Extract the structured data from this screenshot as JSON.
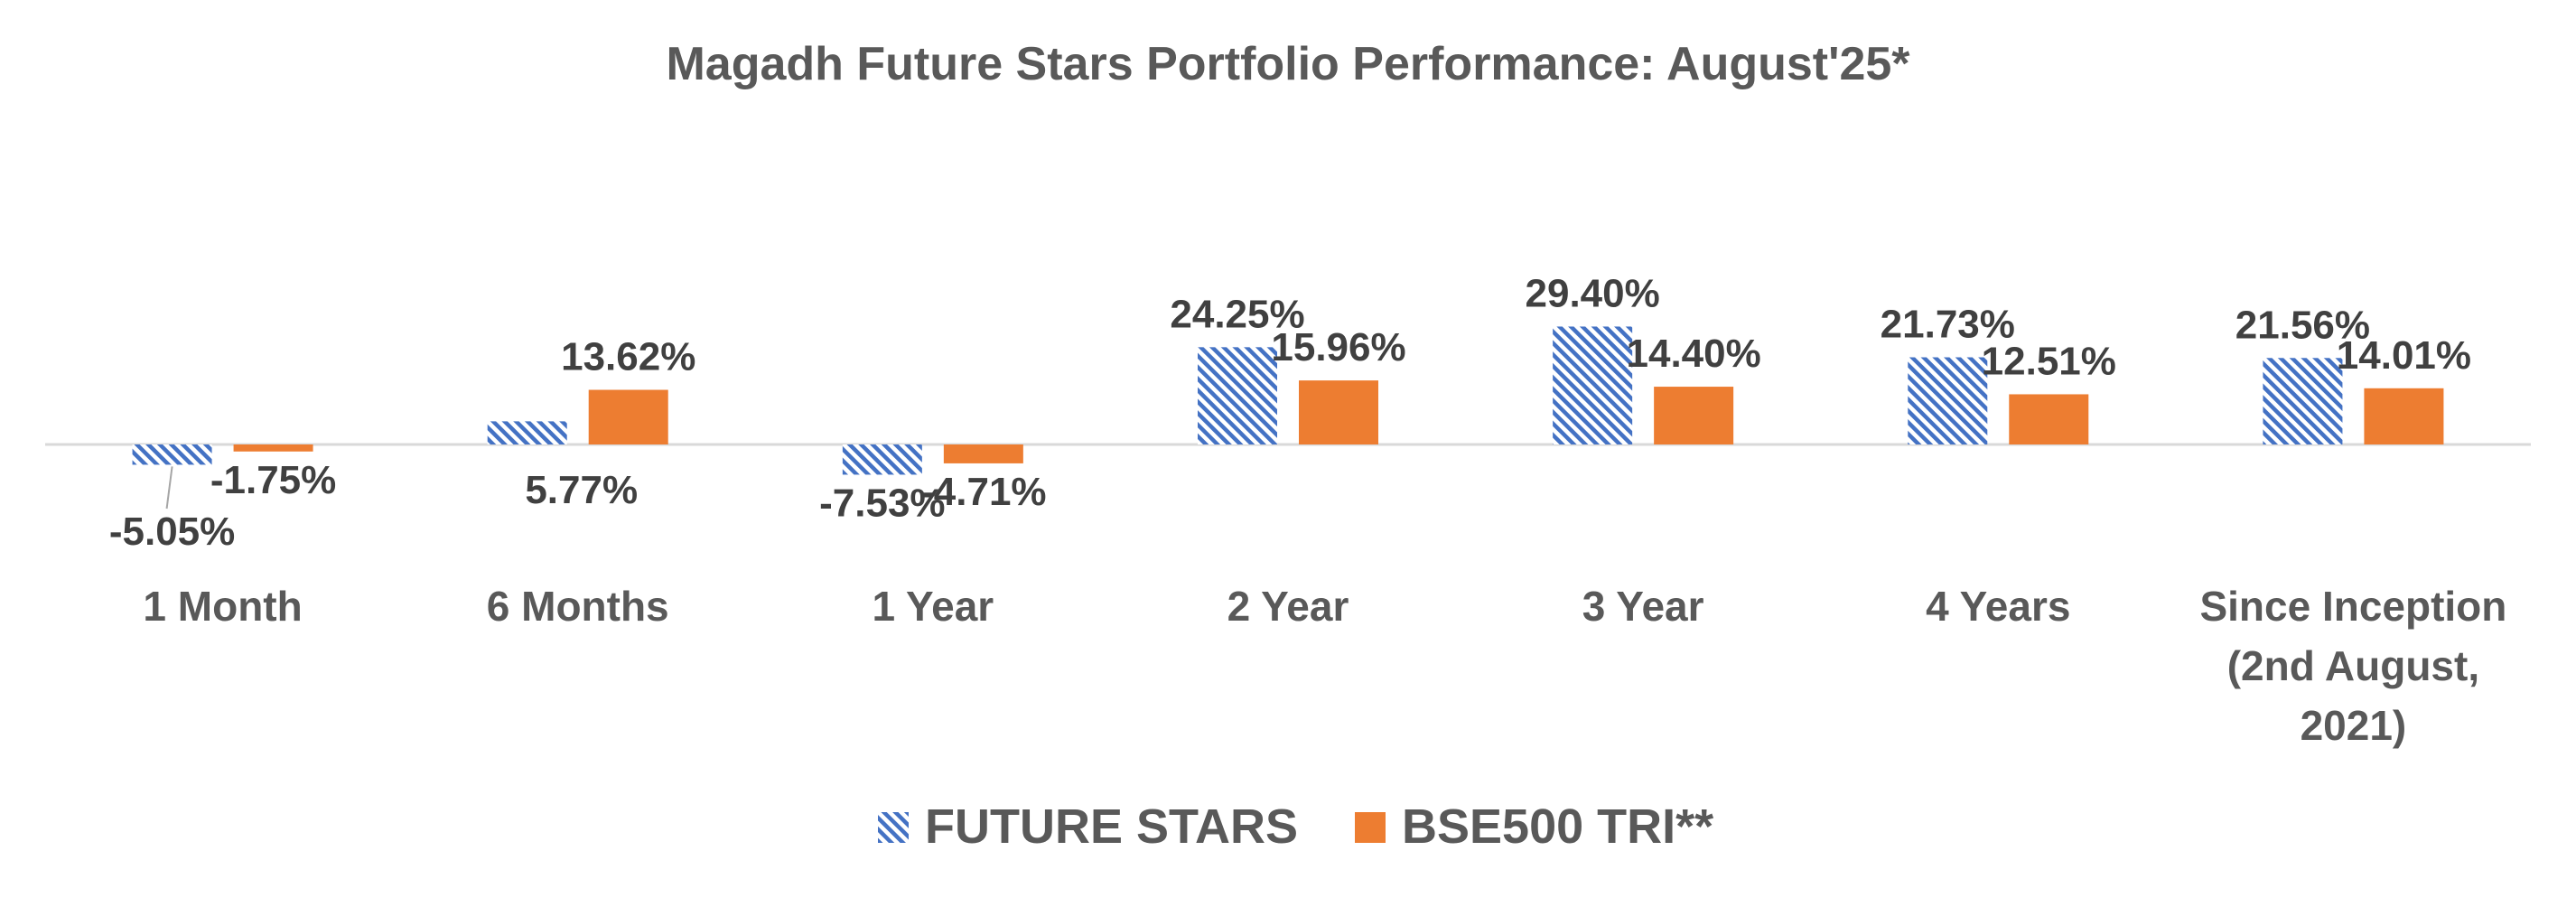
{
  "chart_data": {
    "type": "bar",
    "title": "Magadh Future Stars Portfolio Performance: August'25*",
    "categories": [
      [
        "1 Month"
      ],
      [
        "6 Months"
      ],
      [
        "1 Year"
      ],
      [
        "2 Year"
      ],
      [
        "3 Year"
      ],
      [
        "4 Years"
      ],
      [
        "Since Inception",
        "(2nd August,",
        "2021)"
      ]
    ],
    "series": [
      {
        "name": "FUTURE STARS",
        "values": [
          -5.05,
          5.77,
          -7.53,
          24.25,
          29.4,
          21.73,
          21.56
        ],
        "labels": [
          "-5.05%",
          "5.77%",
          "-7.53%",
          "24.25%",
          "29.40%",
          "21.73%",
          "21.56%"
        ],
        "color": "#4472C4",
        "fill": "diagonal-hatch"
      },
      {
        "name": "BSE500 TRI**",
        "values": [
          -1.75,
          13.62,
          -4.71,
          15.96,
          14.4,
          12.51,
          14.01
        ],
        "labels": [
          "-1.75%",
          "13.62%",
          "-4.71%",
          "15.96%",
          "14.40%",
          "12.51%",
          "14.01%"
        ],
        "color": "#ED7D31",
        "fill": "solid"
      }
    ],
    "legend_position": "bottom",
    "grid": false,
    "axis_line_color": "#D9D9D9",
    "text_color": "#595959",
    "label_color": "#404040"
  }
}
